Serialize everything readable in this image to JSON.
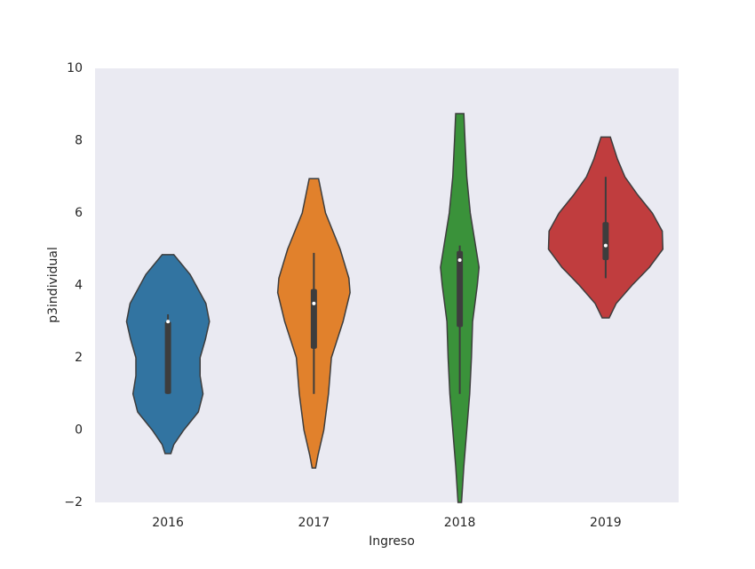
{
  "chart_data": {
    "type": "violin",
    "xlabel": "Ingreso",
    "ylabel": "p3individual",
    "categories": [
      "2016",
      "2017",
      "2018",
      "2019"
    ],
    "ylim": [
      -2,
      10
    ],
    "yticks": [
      {
        "value": -2,
        "label": "−2"
      },
      0,
      2,
      4,
      6,
      8,
      10
    ],
    "background": "#eaeaf2",
    "grid": false,
    "series": [
      {
        "color": "#3274a1",
        "whisker_low": 1.0,
        "q1": 1.0,
        "median": 3.0,
        "q3": 3.0,
        "whisker_high": 3.2,
        "density_y": [
          -0.65,
          -0.4,
          0,
          0.5,
          1.0,
          1.5,
          2.0,
          2.5,
          3.0,
          3.5,
          4.3,
          4.85
        ],
        "density": [
          0.05,
          0.1,
          0.27,
          0.52,
          0.6,
          0.55,
          0.55,
          0.64,
          0.71,
          0.65,
          0.38,
          0.1
        ]
      },
      {
        "color": "#e1812c",
        "whisker_low": 1.0,
        "q1": 2.25,
        "median": 3.5,
        "q3": 3.9,
        "whisker_high": 4.9,
        "density_y": [
          -1.05,
          -0.7,
          0,
          1.0,
          2.0,
          3.0,
          3.8,
          4.2,
          5.0,
          6.0,
          6.95
        ],
        "density": [
          0.03,
          0.07,
          0.17,
          0.25,
          0.3,
          0.5,
          0.62,
          0.6,
          0.45,
          0.2,
          0.08
        ]
      },
      {
        "color": "#3a923a",
        "whisker_low": 1.0,
        "q1": 2.85,
        "median": 4.7,
        "q3": 4.95,
        "whisker_high": 5.1,
        "density_y": [
          -2.0,
          -1.0,
          0,
          1.0,
          2.0,
          3.0,
          4.0,
          4.5,
          5.0,
          6.0,
          7.0,
          8.0,
          8.75
        ],
        "density": [
          0.03,
          0.07,
          0.12,
          0.17,
          0.2,
          0.22,
          0.3,
          0.33,
          0.28,
          0.18,
          0.12,
          0.09,
          0.07
        ]
      },
      {
        "color": "#c03d3e",
        "whisker_low": 4.2,
        "q1": 4.7,
        "median": 5.1,
        "q3": 5.75,
        "whisker_high": 7.0,
        "density_y": [
          3.1,
          3.5,
          4.0,
          4.5,
          5.0,
          5.5,
          6.0,
          6.5,
          7.0,
          7.5,
          8.1
        ],
        "density": [
          0.06,
          0.18,
          0.45,
          0.75,
          0.98,
          0.97,
          0.8,
          0.55,
          0.33,
          0.2,
          0.08
        ]
      }
    ]
  }
}
